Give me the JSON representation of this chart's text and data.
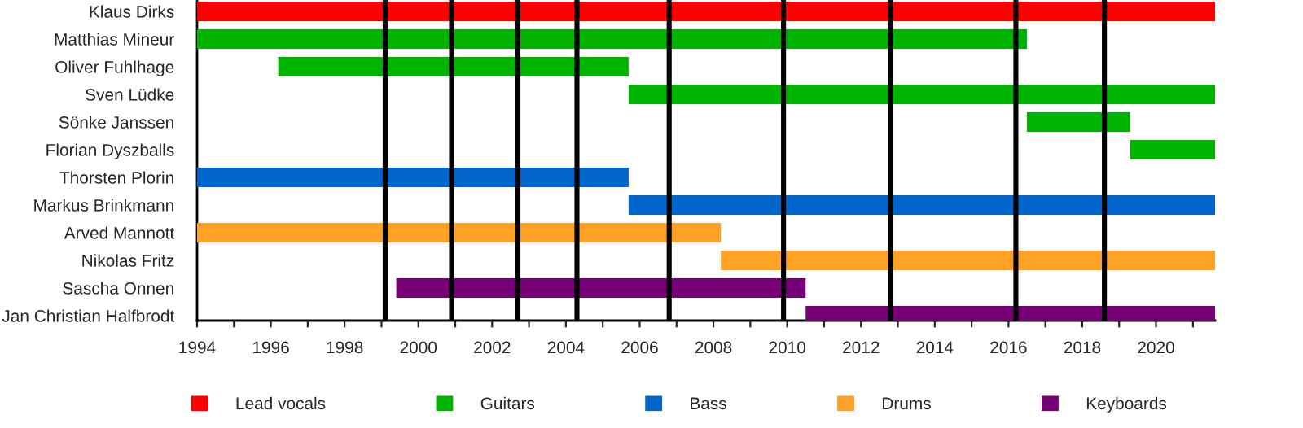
{
  "chart_data": {
    "type": "bar",
    "orientation": "horizontal",
    "categories": [
      "Klaus Dirks",
      "Matthias Mineur",
      "Oliver Fuhlhage",
      "Sven Lüdke",
      "Sönke Janssen",
      "Florian Dyszballs",
      "Thorsten Plorin",
      "Markus Brinkmann",
      "Arved Mannott",
      "Nikolas Fritz",
      "Sascha Onnen",
      "Jan Christian Halfbrodt"
    ],
    "series": [
      {
        "name": "Lead vocals",
        "color": "#ff0000",
        "base": [
          1994,
          null,
          null,
          null,
          null,
          null,
          null,
          null,
          null,
          null,
          null,
          null
        ],
        "values": [
          27.6,
          null,
          null,
          null,
          null,
          null,
          null,
          null,
          null,
          null,
          null,
          null
        ]
      },
      {
        "name": "Guitars",
        "color": "#00b300",
        "base": [
          null,
          1994,
          1996.2,
          2005.7,
          2016.5,
          2019.3,
          null,
          null,
          null,
          null,
          null,
          null
        ],
        "values": [
          null,
          22.5,
          9.5,
          15.9,
          2.8,
          2.3,
          null,
          null,
          null,
          null,
          null,
          null
        ]
      },
      {
        "name": "Bass",
        "color": "#0066cc",
        "base": [
          null,
          null,
          null,
          null,
          null,
          null,
          1994,
          2005.7,
          null,
          null,
          null,
          null
        ],
        "values": [
          null,
          null,
          null,
          null,
          null,
          null,
          11.7,
          15.9,
          null,
          null,
          null,
          null
        ]
      },
      {
        "name": "Drums",
        "color": "#ffa126",
        "base": [
          null,
          null,
          null,
          null,
          null,
          null,
          null,
          null,
          1994,
          2008.2,
          null,
          null
        ],
        "values": [
          null,
          null,
          null,
          null,
          null,
          null,
          null,
          null,
          14.2,
          13.4,
          null,
          null
        ]
      },
      {
        "name": "Keyboards",
        "color": "#770077",
        "base": [
          null,
          null,
          null,
          null,
          null,
          null,
          null,
          null,
          null,
          null,
          1999.4,
          2010.5
        ],
        "values": [
          null,
          null,
          null,
          null,
          null,
          null,
          null,
          null,
          null,
          null,
          11.1,
          11.1
        ]
      }
    ],
    "xlim": [
      1994,
      2021.6
    ],
    "xticks": [
      1994,
      {
        "value": 1995,
        "label": null
      },
      1996,
      {
        "value": 1997,
        "label": null
      },
      1998,
      {
        "value": 1999,
        "label": null
      },
      2000,
      {
        "value": 2001,
        "label": null
      },
      2002,
      {
        "value": 2003,
        "label": null
      },
      2004,
      {
        "value": 2005,
        "label": null
      },
      2006,
      {
        "value": 2007,
        "label": null
      },
      2008,
      {
        "value": 2009,
        "label": null
      },
      2010,
      {
        "value": 2011,
        "label": null
      },
      2012,
      {
        "value": 2013,
        "label": null
      },
      2014,
      {
        "value": 2015,
        "label": null
      },
      2016,
      {
        "value": 2017,
        "label": null
      },
      2018,
      {
        "value": 2019,
        "label": null
      },
      2020,
      {
        "value": 2021,
        "label": null
      }
    ],
    "ref_lines": [
      {
        "axis": "x",
        "value": 1999.1,
        "color": "#000000"
      },
      {
        "axis": "x",
        "value": 2000.9,
        "color": "#000000"
      },
      {
        "axis": "x",
        "value": 2002.7,
        "color": "#000000"
      },
      {
        "axis": "x",
        "value": 2004.3,
        "color": "#000000"
      },
      {
        "axis": "x",
        "value": 2006.8,
        "color": "#000000"
      },
      {
        "axis": "x",
        "value": 2009.9,
        "color": "#000000"
      },
      {
        "axis": "x",
        "value": 2012.8,
        "color": "#000000"
      },
      {
        "axis": "x",
        "value": 2016.2,
        "color": "#000000"
      },
      {
        "axis": "x",
        "value": 2018.6,
        "color": "#000000"
      }
    ],
    "legend": "bottom"
  }
}
